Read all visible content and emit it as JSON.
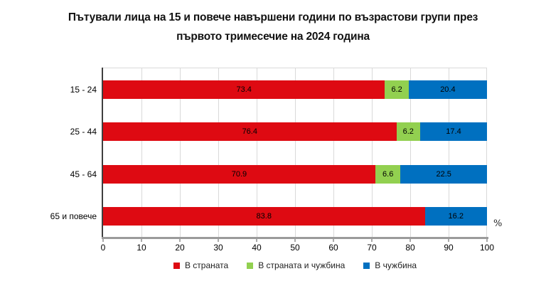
{
  "title": {
    "line1": "Пътували лица на 15 и повече навършени години по възрастови групи през",
    "line2": "първото тримесечие на 2024 година"
  },
  "chart_data": {
    "type": "bar",
    "orientation": "horizontal",
    "stacked": true,
    "title": "Пътували лица на 15 и повече навършени години по възрастови групи през първото тримесечие на 2024 година",
    "categories": [
      "15 - 24",
      "25 - 44",
      "45 - 64",
      "65 и повече"
    ],
    "series": [
      {
        "name": "В страната",
        "color": "#de0a12",
        "values": [
          73.4,
          76.4,
          70.9,
          83.8
        ]
      },
      {
        "name": "В страната и чужбина",
        "color": "#92d050",
        "values": [
          6.2,
          6.2,
          6.6,
          0
        ]
      },
      {
        "name": "В чужбина",
        "color": "#0070c0",
        "values": [
          20.4,
          17.4,
          22.5,
          16.2
        ]
      }
    ],
    "xlim": [
      0,
      100
    ],
    "xticks": [
      0,
      10,
      20,
      30,
      40,
      50,
      60,
      70,
      80,
      90,
      100
    ],
    "unit_label": "%",
    "xlabel": "",
    "ylabel": "",
    "grid": "vertical",
    "value_labels": true,
    "legend_position": "bottom"
  },
  "colors": {
    "gridline": "#d9d9d9",
    "y_axis_line": "#3f3f3f",
    "x_axis_line": "#9b9b9b",
    "title_text": "#121212"
  }
}
